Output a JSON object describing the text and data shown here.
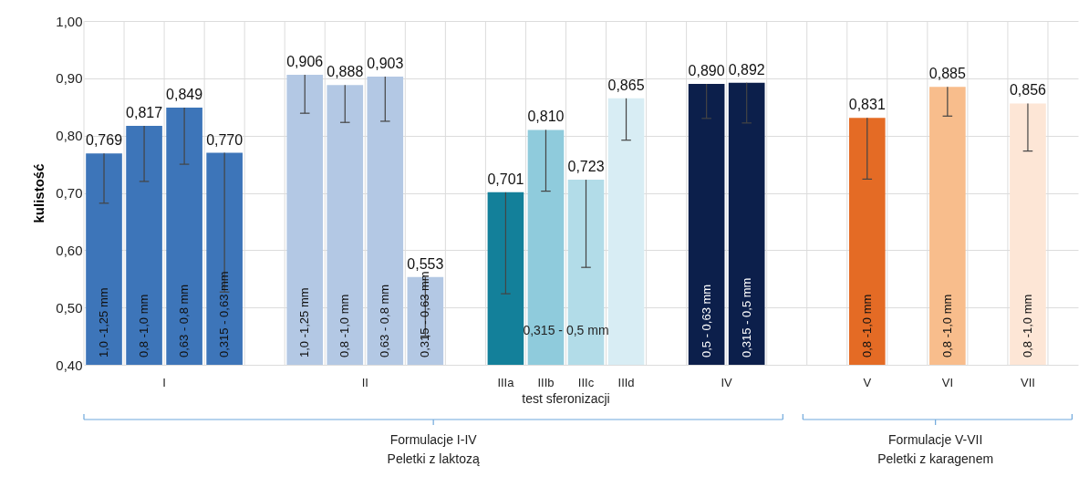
{
  "chart_data": {
    "type": "bar",
    "ylabel": "kulistość",
    "xlabel": "test sferonizacji",
    "categories": [
      null,
      null,
      null,
      null,
      null,
      null,
      null,
      null,
      null,
      null,
      "IIIa",
      "IIIb",
      "IIIc",
      "IIId",
      null,
      null,
      null,
      null,
      null,
      "V",
      null,
      "VI",
      null,
      "VII"
    ],
    "values": [
      0.769,
      0.817,
      0.849,
      0.77,
      null,
      0.906,
      0.888,
      0.903,
      0.553,
      null,
      0.701,
      0.81,
      0.723,
      0.865,
      null,
      0.89,
      0.892,
      null,
      null,
      0.831,
      null,
      0.885,
      null,
      0.856
    ],
    "value_labels": [
      "0,769",
      "0,817",
      "0,849",
      "0,770",
      null,
      "0,906",
      "0,888",
      "0,903",
      "0,553",
      null,
      "0,701",
      "0,810",
      "0,723",
      "0,865",
      null,
      "0,890",
      "0,892",
      null,
      null,
      "0,831",
      null,
      "0,885",
      null,
      "0,856"
    ],
    "errors": [
      [
        0.682,
        0.769
      ],
      [
        0.72,
        0.817
      ],
      [
        0.75,
        0.849
      ],
      [
        0.527,
        0.77
      ],
      null,
      [
        0.839,
        0.906
      ],
      [
        0.823,
        0.888
      ],
      [
        0.825,
        0.903
      ],
      [
        0.45,
        0.553
      ],
      null,
      [
        0.524,
        0.701
      ],
      [
        0.703,
        0.81
      ],
      [
        0.57,
        0.723
      ],
      [
        0.792,
        0.865
      ],
      null,
      [
        0.83,
        0.89
      ],
      [
        0.822,
        0.892
      ],
      null,
      null,
      [
        0.724,
        0.831
      ],
      null,
      [
        0.834,
        0.885
      ],
      null,
      [
        0.773,
        0.856
      ]
    ],
    "colors": [
      "#3d75b9",
      "#3d75b9",
      "#3d75b9",
      "#3d75b9",
      null,
      "#b3c8e4",
      "#b3c8e4",
      "#b3c8e4",
      "#b3c8e4",
      null,
      "#13809a",
      "#8fcbdc",
      "#b2dce8",
      "#d8edf4",
      null,
      "#0c1f4b",
      "#0c1f4b",
      null,
      null,
      "#e46b25",
      null,
      "#f8bd8c",
      null,
      "#fde6d6"
    ],
    "ylim": [
      0.4,
      1.0
    ],
    "yticks": [
      {
        "value": 0.4,
        "label": "0,40"
      },
      {
        "value": 0.5,
        "label": "0,50"
      },
      {
        "value": 0.6,
        "label": "0,60"
      },
      {
        "value": 0.7,
        "label": "0,70"
      },
      {
        "value": 0.8,
        "label": "0,80"
      },
      {
        "value": 0.9,
        "label": "0,90"
      },
      {
        "value": 1.0,
        "label": "1,00"
      }
    ],
    "grid": true,
    "annotations": [
      "I",
      "II",
      "IV",
      "1,0 -1,25 mm",
      "0,8 -1,0 mm",
      "0,63 - 0,8 mm",
      "0,315 - 0,63 mm",
      "1,0 -1,25 mm",
      "0,8 -1,0 mm",
      "0,63 - 0,8 mm",
      "0,315 - 0,63 mm",
      "0,5 - 0,63 mm",
      "0,315 - 0,5 mm",
      "0,8 -1,0 mm",
      "0,8 -1,0 mm",
      "0,8 -1,0 mm",
      "0,315 - 0,5 mm",
      "Formulacje I-IV\nPeletki z laktozą",
      "Formulacje V-VII\nPeletki z karagenem"
    ]
  }
}
